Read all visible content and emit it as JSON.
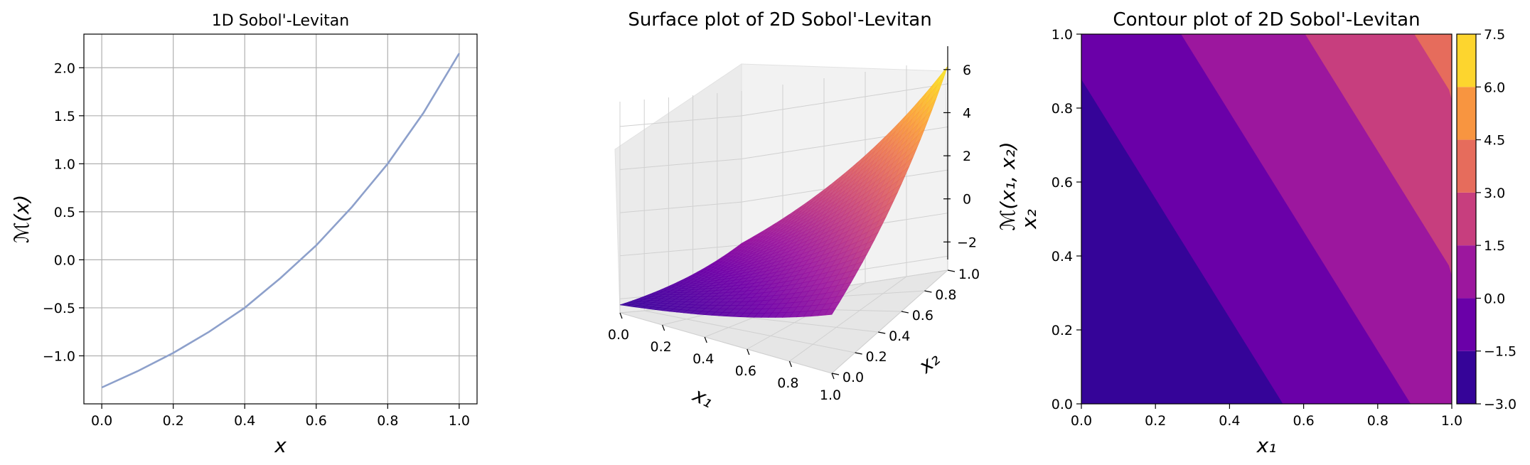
{
  "chart_data": [
    {
      "type": "line",
      "title": "1D Sobol'-Levitan",
      "xlabel": "x",
      "ylabel": "ℳ(x)",
      "xlim": [
        -0.05,
        1.05
      ],
      "ylim": [
        -1.5,
        2.35
      ],
      "xticks": [
        "0.0",
        "0.2",
        "0.4",
        "0.6",
        "0.8",
        "1.0"
      ],
      "yticks": [
        "−1.0",
        "−0.5",
        "0.0",
        "0.5",
        "1.0",
        "1.5",
        "2.0"
      ],
      "grid": true,
      "color": "#8da0cb",
      "series": [
        {
          "x": [
            0,
            0.1,
            0.2,
            0.3,
            0.4,
            0.5,
            0.6,
            0.7,
            0.8,
            0.9,
            1.0
          ],
          "values": [
            -1.33,
            -1.16,
            -0.97,
            -0.75,
            -0.5,
            -0.19,
            0.15,
            0.55,
            1.0,
            1.53,
            2.15
          ]
        }
      ]
    },
    {
      "type": "surface",
      "title": "Surface plot of 2D Sobol'-Levitan",
      "xlabel": "x₁",
      "ylabel": "x₂",
      "zlabel": "ℳ(x₁, x₂)",
      "xticks": [
        "0.0",
        "0.2",
        "0.4",
        "0.6",
        "0.8",
        "1.0"
      ],
      "yticks": [
        "0.0",
        "0.2",
        "0.4",
        "0.6",
        "0.8",
        "1.0"
      ],
      "zticks": [
        "−2",
        "0",
        "2",
        "4",
        "6"
      ],
      "colormap": "plasma",
      "z_range": [
        -2.65,
        7.15
      ]
    },
    {
      "type": "contour",
      "title": "Contour plot of 2D Sobol'-Levitan",
      "xlabel": "x₁",
      "ylabel": "x₂",
      "xticks": [
        "0.0",
        "0.2",
        "0.4",
        "0.6",
        "0.8",
        "1.0"
      ],
      "yticks": [
        "0.0",
        "0.2",
        "0.4",
        "0.6",
        "0.8",
        "1.0"
      ],
      "levels": [
        -3.0,
        -1.5,
        0.0,
        1.5,
        3.0,
        4.5,
        6.0,
        7.5
      ],
      "colorbar_ticks": [
        "−3.0",
        "−1.5",
        "0.0",
        "1.5",
        "3.0",
        "4.5",
        "6.0",
        "7.5"
      ],
      "level_colors": [
        "#350498",
        "#6a00a8",
        "#9c179e",
        "#c73e7e",
        "#e66c5c",
        "#f89540",
        "#fdd52e"
      ],
      "colormap": "plasma"
    }
  ]
}
